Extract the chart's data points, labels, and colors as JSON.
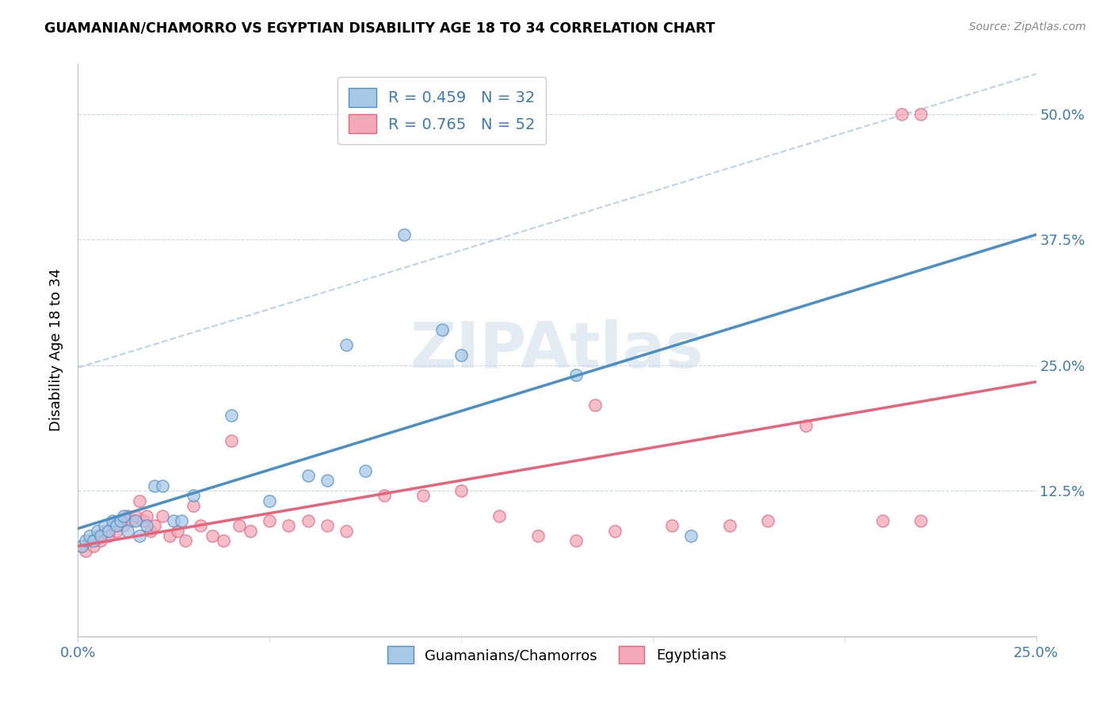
{
  "title": "GUAMANIAN/CHAMORRO VS EGYPTIAN DISABILITY AGE 18 TO 34 CORRELATION CHART",
  "source": "Source: ZipAtlas.com",
  "ylabel": "Disability Age 18 to 34",
  "xlim": [
    0.0,
    0.25
  ],
  "ylim": [
    -0.02,
    0.55
  ],
  "ytick_vals": [
    0.125,
    0.25,
    0.375,
    0.5
  ],
  "ytick_labels": [
    "12.5%",
    "25.0%",
    "37.5%",
    "50.0%"
  ],
  "xtick_vals": [
    0.0,
    0.25
  ],
  "xtick_labels": [
    "0.0%",
    "25.0%"
  ],
  "xtick_minor_vals": [
    0.05,
    0.1,
    0.15,
    0.2
  ],
  "legend_label_1": "R = 0.459   N = 32",
  "legend_label_2": "R = 0.765   N = 52",
  "legend_group1": "Guamanians/Chamorros",
  "legend_group2": "Egyptians",
  "R1": 0.459,
  "N1": 32,
  "R2": 0.765,
  "N2": 52,
  "color_blue": "#a8c8e8",
  "color_pink": "#f4a8b8",
  "color_blue_line": "#4a90c4",
  "color_pink_line": "#e8637a",
  "color_blue_text": "#3a7abf",
  "color_dashed": "#a8c8e8",
  "watermark_text": "ZIPAtlas",
  "guamanian_x": [
    0.001,
    0.002,
    0.003,
    0.004,
    0.005,
    0.006,
    0.007,
    0.008,
    0.009,
    0.01,
    0.011,
    0.012,
    0.013,
    0.015,
    0.016,
    0.018,
    0.02,
    0.022,
    0.025,
    0.027,
    0.03,
    0.04,
    0.05,
    0.06,
    0.065,
    0.07,
    0.075,
    0.085,
    0.095,
    0.1,
    0.13,
    0.16
  ],
  "guamanian_y": [
    0.07,
    0.075,
    0.08,
    0.075,
    0.085,
    0.08,
    0.09,
    0.085,
    0.095,
    0.09,
    0.095,
    0.1,
    0.085,
    0.095,
    0.08,
    0.09,
    0.13,
    0.13,
    0.095,
    0.095,
    0.12,
    0.2,
    0.115,
    0.14,
    0.135,
    0.27,
    0.145,
    0.38,
    0.285,
    0.26,
    0.24,
    0.08
  ],
  "egyptian_x": [
    0.001,
    0.002,
    0.003,
    0.004,
    0.005,
    0.006,
    0.007,
    0.008,
    0.009,
    0.01,
    0.011,
    0.012,
    0.013,
    0.014,
    0.015,
    0.016,
    0.017,
    0.018,
    0.019,
    0.02,
    0.022,
    0.024,
    0.026,
    0.028,
    0.03,
    0.032,
    0.035,
    0.038,
    0.04,
    0.042,
    0.045,
    0.05,
    0.055,
    0.06,
    0.065,
    0.07,
    0.08,
    0.09,
    0.1,
    0.11,
    0.12,
    0.13,
    0.14,
    0.155,
    0.17,
    0.18,
    0.19,
    0.21,
    0.215,
    0.22,
    0.135,
    0.22
  ],
  "egyptian_y": [
    0.07,
    0.065,
    0.075,
    0.07,
    0.08,
    0.075,
    0.085,
    0.08,
    0.09,
    0.085,
    0.095,
    0.09,
    0.1,
    0.095,
    0.1,
    0.115,
    0.095,
    0.1,
    0.085,
    0.09,
    0.1,
    0.08,
    0.085,
    0.075,
    0.11,
    0.09,
    0.08,
    0.075,
    0.175,
    0.09,
    0.085,
    0.095,
    0.09,
    0.095,
    0.09,
    0.085,
    0.12,
    0.12,
    0.125,
    0.1,
    0.08,
    0.075,
    0.085,
    0.09,
    0.09,
    0.095,
    0.19,
    0.095,
    0.5,
    0.5,
    0.21,
    0.095
  ]
}
